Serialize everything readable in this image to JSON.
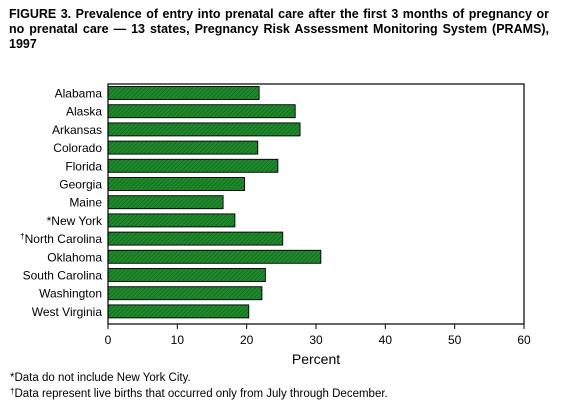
{
  "chart_data": {
    "type": "bar",
    "orientation": "horizontal",
    "title": "FIGURE 3. Prevalence of entry into prenatal care after the first 3 months of pregnancy or no prenatal care — 13 states, Pregnancy Risk Assessment Monitoring System (PRAMS), 1997",
    "categories": [
      "Alabama",
      "Alaska",
      "Arkansas",
      "Colorado",
      "Florida",
      "Georgia",
      "Maine",
      "*New York",
      "†North Carolina",
      "Oklahoma",
      "South Carolina",
      "Washington",
      "West Virginia"
    ],
    "values": [
      21.8,
      27.0,
      27.7,
      21.6,
      24.5,
      19.7,
      16.6,
      18.3,
      25.2,
      30.7,
      22.7,
      22.2,
      20.3
    ],
    "xlabel": "Percent",
    "ylabel": "",
    "xlim": [
      0,
      60
    ],
    "xticks": [
      "0",
      "10",
      "20",
      "30",
      "40",
      "50",
      "60"
    ],
    "grid": false,
    "legend": "none",
    "bar_color": "#1f8a2c"
  },
  "footnotes": [
    {
      "marker": "*",
      "text": "Data do not include New York City."
    },
    {
      "marker": "†",
      "text": "Data represent live births that occurred only from July through December."
    }
  ]
}
